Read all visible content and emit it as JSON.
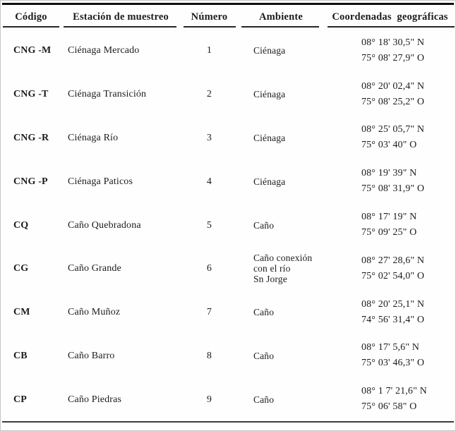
{
  "table": {
    "columns": [
      {
        "key": "codigo",
        "label": "Código"
      },
      {
        "key": "estacion",
        "label": "Estación de muestreo"
      },
      {
        "key": "numero",
        "label": "Número"
      },
      {
        "key": "ambiente",
        "label": "Ambiente"
      },
      {
        "key": "coordenadas",
        "label": "Coordenadas  geográficas"
      }
    ],
    "rows": [
      {
        "codigo": "CNG -M",
        "estacion": "Ciénaga Mercado",
        "numero": "1",
        "ambiente": [
          "Ciénaga"
        ],
        "coordenadas": [
          "08° 18' 30,5\" N",
          "75° 08' 27,9\" O"
        ]
      },
      {
        "codigo": "CNG -T",
        "estacion": "Ciénaga Transición",
        "numero": "2",
        "ambiente": [
          "Ciénaga"
        ],
        "coordenadas": [
          "08° 20' 02,4\" N",
          "75° 08' 25,2\" O"
        ]
      },
      {
        "codigo": "CNG -R",
        "estacion": "Ciénaga Río",
        "numero": "3",
        "ambiente": [
          "Ciénaga"
        ],
        "coordenadas": [
          "08° 25' 05,7\" N",
          "75° 03' 40\" O"
        ]
      },
      {
        "codigo": "CNG -P",
        "estacion": "Ciénaga Paticos",
        "numero": "4",
        "ambiente": [
          "Ciénaga"
        ],
        "coordenadas": [
          "08° 19' 39\" N",
          "75° 08' 31,9\" O"
        ]
      },
      {
        "codigo": "CQ",
        "estacion": "Caño Quebradona",
        "numero": "5",
        "ambiente": [
          "Caño"
        ],
        "coordenadas": [
          "08° 17' 19\" N",
          "75° 09' 25\" O"
        ]
      },
      {
        "codigo": "CG",
        "estacion": "Caño Grande",
        "numero": "6",
        "ambiente": [
          "Caño conexión",
          "con el río",
          "Sn Jorge"
        ],
        "coordenadas": [
          "08° 27' 28,6\" N",
          "75° 02' 54,0\" O"
        ]
      },
      {
        "codigo": "CM",
        "estacion": "Caño Muñoz",
        "numero": "7",
        "ambiente": [
          "Caño"
        ],
        "coordenadas": [
          "08° 20' 25,1\" N",
          "74° 56' 31,4\" O"
        ]
      },
      {
        "codigo": "CB",
        "estacion": "Caño Barro",
        "numero": "8",
        "ambiente": [
          "Caño"
        ],
        "coordenadas": [
          "08° 17' 5,6\" N",
          "75° 03' 46,3\" O"
        ]
      },
      {
        "codigo": "CP",
        "estacion": "Caño Piedras",
        "numero": "9",
        "ambiente": [
          "Caño"
        ],
        "coordenadas": [
          "08° 1 7' 21,6\" N",
          "75° 06' 58\" O"
        ]
      }
    ]
  },
  "colors": {
    "text": "#1c1c1c",
    "top_rule": "#101010",
    "header_rule": "#262626",
    "bottom_rule": "#3c3c3c"
  }
}
